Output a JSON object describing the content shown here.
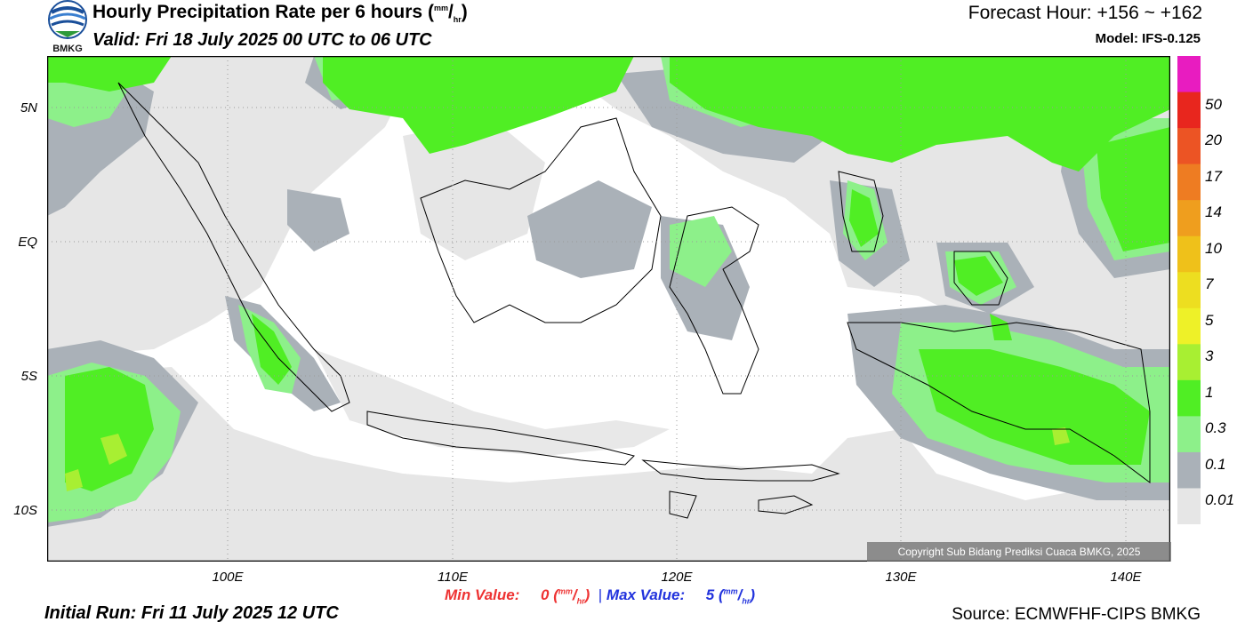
{
  "header": {
    "logo_text": "BMKG",
    "title": "Hourly Precipitation Rate per 6 hours",
    "title_unit_num": "mm",
    "title_unit_den": "hr",
    "valid": "Valid: Fri 18 July 2025 00 UTC to 06 UTC",
    "forecast_hour": "Forecast Hour: +156 ~ +162",
    "model": "Model: IFS-0.125"
  },
  "map": {
    "region": "Indonesia",
    "lat_labels": [
      "5N",
      "EQ",
      "5S",
      "10S"
    ],
    "lon_labels": [
      "100E",
      "110E",
      "120E",
      "130E",
      "140E"
    ],
    "copyright": "Copyright Sub Bidang Prediksi Cuaca BMKG, 2025"
  },
  "legend": {
    "labels": [
      "50",
      "20",
      "17",
      "14",
      "10",
      "7",
      "5",
      "3",
      "1",
      "0.3",
      "0.1",
      "0.01"
    ],
    "colors": [
      "#e81cc0",
      "#e8261e",
      "#ec5424",
      "#ee7c22",
      "#ef9e1e",
      "#efc11a",
      "#edde20",
      "#eef128",
      "#a8ef32",
      "#50ee24",
      "#8df08a",
      "#aab1b8",
      "#e6e6e6"
    ]
  },
  "stats": {
    "min_label": "Min Value:",
    "min_value": "0",
    "max_label": "Max Value:",
    "max_value": "5",
    "unit_num": "mm",
    "unit_den": "hr",
    "separator": "|"
  },
  "footer": {
    "initial_run": "Initial Run: Fri 11 July 2025 12 UTC",
    "source": "Source: ECMWFHF-CIPS BMKG"
  }
}
